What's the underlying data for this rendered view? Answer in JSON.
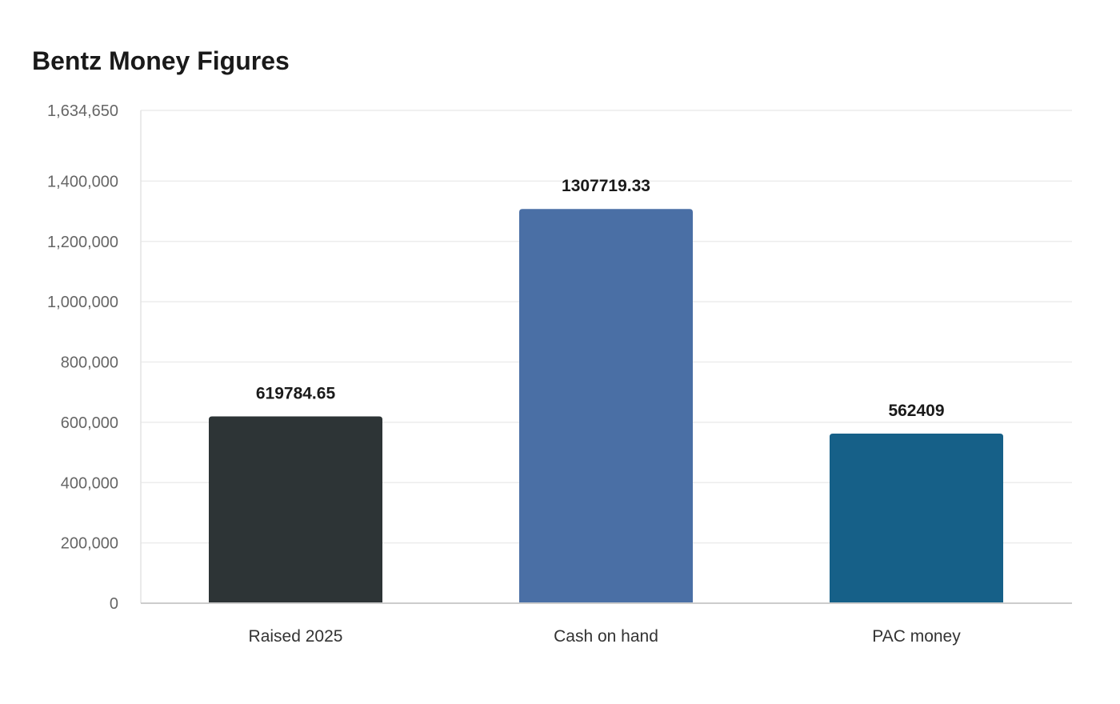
{
  "chart_data": {
    "type": "bar",
    "title": "Bentz Money Figures",
    "xlabel": "",
    "ylabel": "",
    "categories": [
      "Raised 2025",
      "Cash on hand",
      "PAC money"
    ],
    "values": [
      619784.65,
      1307719.33,
      562409
    ],
    "value_labels": [
      "619784.65",
      "1307719.33",
      "562409"
    ],
    "colors": [
      "#2d3436",
      "#4a6fa5",
      "#166088"
    ],
    "ylim": [
      0,
      1634650
    ],
    "yticks": [
      0,
      200000,
      400000,
      600000,
      800000,
      1000000,
      1200000,
      1400000,
      1634650
    ],
    "ytick_labels": [
      "0",
      "200,000",
      "400,000",
      "600,000",
      "800,000",
      "1,000,000",
      "1,200,000",
      "1,400,000",
      "1,634,650"
    ],
    "grid": true,
    "legend": "none"
  }
}
